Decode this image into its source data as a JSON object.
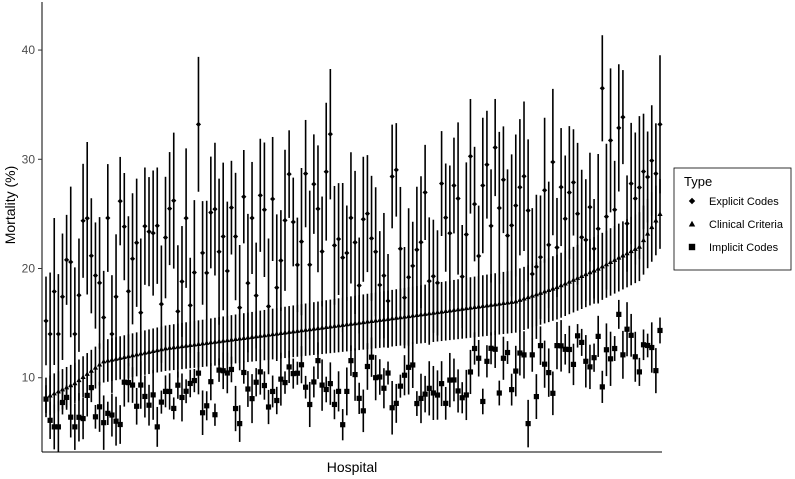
{
  "chart_data": {
    "type": "scatter",
    "title": "",
    "xlabel": "Hospital",
    "ylabel": "Mortality (%)",
    "ylim": [
      3.2,
      44.4
    ],
    "yticks": [
      10,
      20,
      30,
      40
    ],
    "x_ticks_shown": false,
    "grid": false,
    "legend_position": "right",
    "legend_title": "Type",
    "hospital_count": 150,
    "series": [
      {
        "name": "Explicit Codes",
        "marker": "diamond",
        "trend": [
          [
            1,
            15.5
          ],
          [
            15,
            20
          ],
          [
            40,
            21
          ],
          [
            75,
            23
          ],
          [
            110,
            25
          ],
          [
            140,
            28
          ],
          [
            150,
            31
          ]
        ],
        "point_range": [
          14,
          37
        ],
        "ci_half_width": [
          4,
          7
        ],
        "highlights": [
          [
            1,
            15.2
          ],
          [
            38,
            33.2
          ],
          [
            70,
            32.3
          ],
          [
            136,
            36.5
          ],
          [
            150,
            33.2
          ]
        ]
      },
      {
        "name": "Clinical Criteria",
        "marker": "triangle",
        "trend": [
          [
            1,
            8.2
          ],
          [
            8,
            9.5
          ],
          [
            15,
            11.5
          ],
          [
            30,
            12.7
          ],
          [
            60,
            14.2
          ],
          [
            90,
            15.7
          ],
          [
            115,
            17
          ],
          [
            125,
            18.3
          ],
          [
            135,
            20
          ],
          [
            145,
            22
          ],
          [
            150,
            25
          ]
        ],
        "ci_half_width": [
          1.8,
          3.2
        ]
      },
      {
        "name": "Implicit Codes",
        "marker": "square",
        "trend": [
          [
            1,
            6.2
          ],
          [
            30,
            7.8
          ],
          [
            60,
            8.8
          ],
          [
            90,
            9.6
          ],
          [
            120,
            10.8
          ],
          [
            150,
            12.5
          ]
        ],
        "point_range": [
          5.5,
          16
        ],
        "ci_half_width": [
          1,
          2.5
        ],
        "highlights": [
          [
            2,
            6.1
          ],
          [
            73,
            5.7
          ],
          [
            118,
            5.8
          ],
          [
            140,
            15.8
          ]
        ]
      }
    ],
    "colors": {
      "marks": "#000000",
      "tick_text": "#4d4d4d",
      "background": "#ffffff"
    }
  }
}
